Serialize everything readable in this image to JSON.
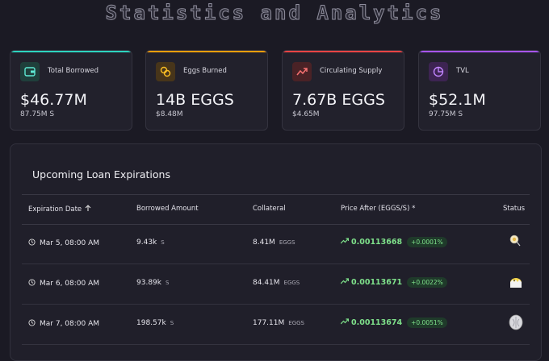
{
  "header": {
    "title": "Statistics and Analytics"
  },
  "cards": [
    {
      "label": "Total Borrowed",
      "value": "$46.77M",
      "sub": "87.75M S"
    },
    {
      "label": "Eggs Burned",
      "value": "14B EGGS",
      "sub": "$8.48M"
    },
    {
      "label": "Circulating Supply",
      "value": "7.67B EGGS",
      "sub": "$4.65M"
    },
    {
      "label": "TVL",
      "value": "$52.1M",
      "sub": "97.75M S"
    }
  ],
  "table": {
    "title": "Upcoming Loan Expirations",
    "columns": [
      "Expiration Date",
      "Borrowed Amount",
      "Collateral",
      "Price After (EGGS/S) *",
      "Status"
    ],
    "rows": [
      {
        "date": "Mar 5, 08:00 AM",
        "borrowed": "9.43k",
        "borrowed_unit": "S",
        "collateral": "8.41M",
        "collateral_unit": "EGGS",
        "price": "0.00113668",
        "change": "+0.0001%"
      },
      {
        "date": "Mar 6, 08:00 AM",
        "borrowed": "93.89k",
        "borrowed_unit": "S",
        "collateral": "84.41M",
        "collateral_unit": "EGGS",
        "price": "0.00113671",
        "change": "+0.0022%"
      },
      {
        "date": "Mar 7, 08:00 AM",
        "borrowed": "198.57k",
        "borrowed_unit": "S",
        "collateral": "177.11M",
        "collateral_unit": "EGGS",
        "price": "0.00113674",
        "change": "+0.0051%"
      }
    ]
  }
}
